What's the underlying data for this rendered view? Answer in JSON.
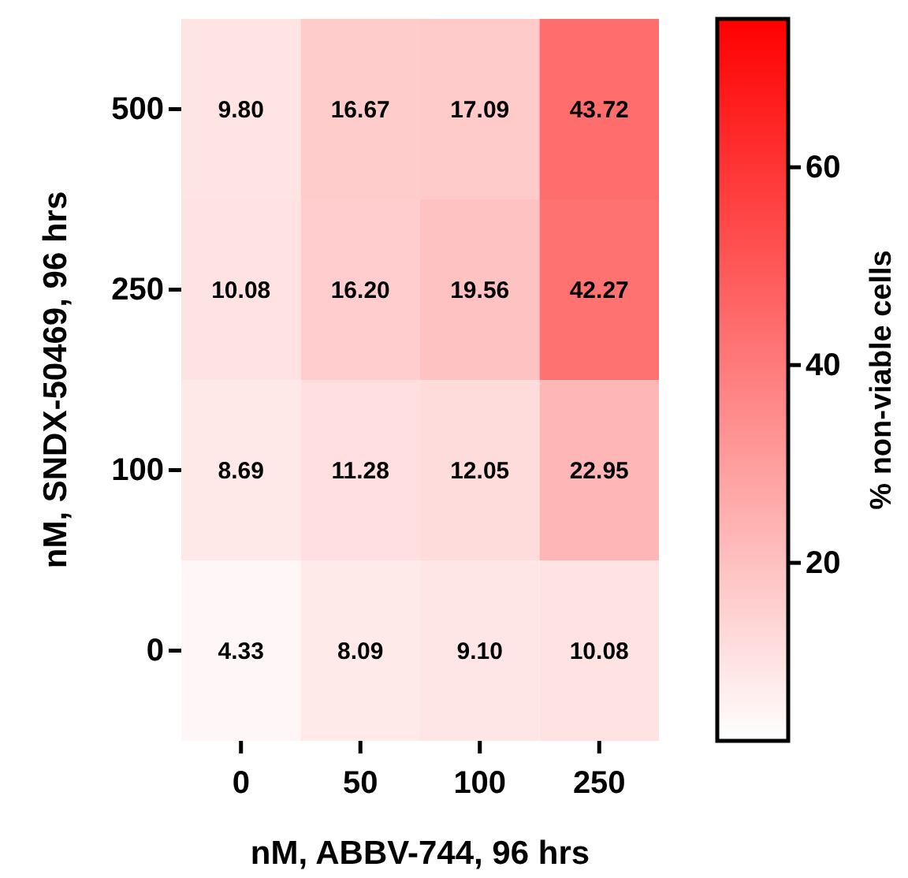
{
  "chart_data": {
    "type": "heatmap",
    "xlabel": "nM, ABBV-744, 96 hrs",
    "ylabel": "nM, SNDX-50469, 96 hrs",
    "clabel": "% non-viable cells",
    "categories": [
      "0",
      "50",
      "100",
      "250"
    ],
    "y_categories": [
      "500",
      "250",
      "100",
      "0"
    ],
    "cells": [
      [
        9.8,
        16.67,
        17.09,
        43.72
      ],
      [
        10.08,
        16.2,
        19.56,
        42.27
      ],
      [
        8.69,
        11.28,
        12.05,
        22.95
      ],
      [
        4.33,
        8.09,
        9.1,
        10.08
      ]
    ],
    "cell_labels": [
      [
        "9.80",
        "16.67",
        "17.09",
        "43.72"
      ],
      [
        "10.08",
        "16.20",
        "19.56",
        "42.27"
      ],
      [
        "8.69",
        "11.28",
        "12.05",
        "22.95"
      ],
      [
        "4.33",
        "8.09",
        "9.10",
        "10.08"
      ]
    ],
    "clim": [
      2,
      75
    ],
    "cticks": [
      20,
      40,
      60
    ]
  }
}
